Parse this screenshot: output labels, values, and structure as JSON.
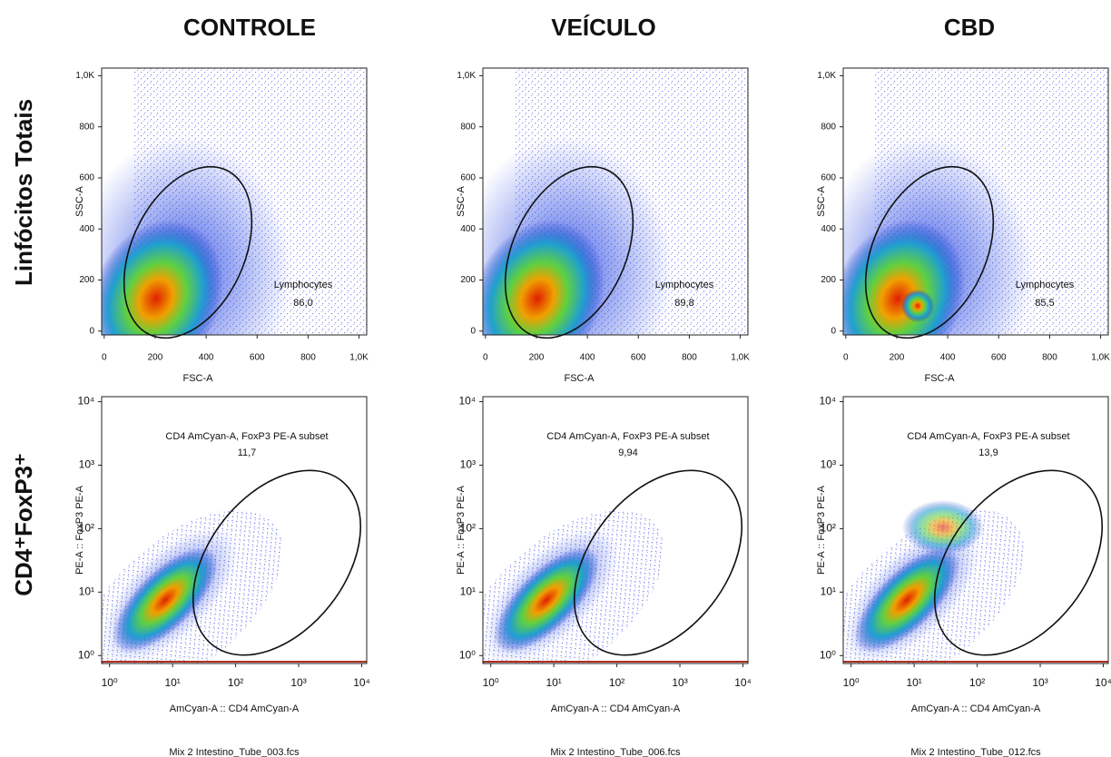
{
  "column_titles": [
    "CONTROLE",
    "VEÍCULO",
    "CBD"
  ],
  "row_titles": [
    "Linfócitos Totais",
    "CD4⁺FoxP3⁺"
  ],
  "chart_data": [
    {
      "type": "scatter",
      "xlabel": "FSC-A",
      "ylabel": "SSC-A",
      "xlim": [
        -10,
        1030
      ],
      "ylim": [
        -15,
        1030
      ],
      "xticks": [
        0,
        200,
        400,
        600,
        800,
        {
          "value": 1000,
          "label": "1,0K"
        }
      ],
      "yticks": [
        0,
        200,
        400,
        600,
        800,
        {
          "value": 1000,
          "label": "1,0K"
        }
      ],
      "gate": {
        "name": "Lymphocytes",
        "value": "86,0"
      }
    },
    {
      "type": "scatter",
      "xlabel": "FSC-A",
      "ylabel": "SSC-A",
      "xlim": [
        -10,
        1030
      ],
      "ylim": [
        -15,
        1030
      ],
      "xticks": [
        0,
        200,
        400,
        600,
        800,
        {
          "value": 1000,
          "label": "1,0K"
        }
      ],
      "yticks": [
        0,
        200,
        400,
        600,
        800,
        {
          "value": 1000,
          "label": "1,0K"
        }
      ],
      "gate": {
        "name": "Lymphocytes",
        "value": "89,8"
      }
    },
    {
      "type": "scatter",
      "xlabel": "FSC-A",
      "ylabel": "SSC-A",
      "xlim": [
        -10,
        1030
      ],
      "ylim": [
        -15,
        1030
      ],
      "xticks": [
        0,
        200,
        400,
        600,
        800,
        {
          "value": 1000,
          "label": "1,0K"
        }
      ],
      "yticks": [
        0,
        200,
        400,
        600,
        800,
        {
          "value": 1000,
          "label": "1,0K"
        }
      ],
      "gate": {
        "name": "Lymphocytes",
        "value": "85,5"
      }
    },
    {
      "type": "scatter",
      "log_scale": true,
      "xlabel": "AmCyan-A :: CD4 AmCyan-A",
      "ylabel": "PE-A :: FoxP3 PE-A",
      "xlim": [
        0.75,
        12000
      ],
      "ylim": [
        0.75,
        12000
      ],
      "xticks": [
        {
          "value": 1,
          "label": "10⁰"
        },
        {
          "value": 10,
          "label": "10¹"
        },
        {
          "value": 100,
          "label": "10²"
        },
        {
          "value": 1000,
          "label": "10³"
        },
        {
          "value": 10000,
          "label": "10⁴"
        }
      ],
      "yticks": [
        {
          "value": 1,
          "label": "10⁰"
        },
        {
          "value": 10,
          "label": "10¹"
        },
        {
          "value": 100,
          "label": "10²"
        },
        {
          "value": 1000,
          "label": "10³"
        },
        {
          "value": 10000,
          "label": "10⁴"
        }
      ],
      "gate": {
        "name": "CD4 AmCyan-A, FoxP3 PE-A subset",
        "value": "11,7"
      },
      "file": "Mix 2 Intestino_Tube_003.fcs"
    },
    {
      "type": "scatter",
      "log_scale": true,
      "xlabel": "AmCyan-A :: CD4 AmCyan-A",
      "ylabel": "PE-A :: FoxP3 PE-A",
      "xlim": [
        0.75,
        12000
      ],
      "ylim": [
        0.75,
        12000
      ],
      "xticks": [
        {
          "value": 1,
          "label": "10⁰"
        },
        {
          "value": 10,
          "label": "10¹"
        },
        {
          "value": 100,
          "label": "10²"
        },
        {
          "value": 1000,
          "label": "10³"
        },
        {
          "value": 10000,
          "label": "10⁴"
        }
      ],
      "yticks": [
        {
          "value": 1,
          "label": "10⁰"
        },
        {
          "value": 10,
          "label": "10¹"
        },
        {
          "value": 100,
          "label": "10²"
        },
        {
          "value": 1000,
          "label": "10³"
        },
        {
          "value": 10000,
          "label": "10⁴"
        }
      ],
      "gate": {
        "name": "CD4 AmCyan-A, FoxP3 PE-A subset",
        "value": "9,94"
      },
      "file": "Mix 2 Intestino_Tube_006.fcs"
    },
    {
      "type": "scatter",
      "log_scale": true,
      "xlabel": "AmCyan-A :: CD4 AmCyan-A",
      "ylabel": "PE-A :: FoxP3 PE-A",
      "xlim": [
        0.75,
        12000
      ],
      "ylim": [
        0.75,
        12000
      ],
      "xticks": [
        {
          "value": 1,
          "label": "10⁰"
        },
        {
          "value": 10,
          "label": "10¹"
        },
        {
          "value": 100,
          "label": "10²"
        },
        {
          "value": 1000,
          "label": "10³"
        },
        {
          "value": 10000,
          "label": "10⁴"
        }
      ],
      "yticks": [
        {
          "value": 1,
          "label": "10⁰"
        },
        {
          "value": 10,
          "label": "10¹"
        },
        {
          "value": 100,
          "label": "10²"
        },
        {
          "value": 1000,
          "label": "10³"
        },
        {
          "value": 10000,
          "label": "10⁴"
        }
      ],
      "gate": {
        "name": "CD4 AmCyan-A, FoxP3 PE-A subset",
        "value": "13,9"
      },
      "file": "Mix 2 Intestino_Tube_012.fcs"
    }
  ]
}
